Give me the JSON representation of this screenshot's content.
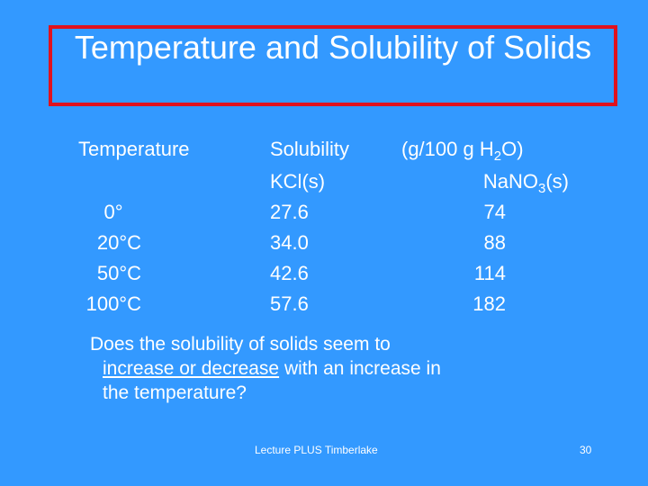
{
  "title": "Temperature and Solubility of Solids",
  "table": {
    "col_temperature": "Temperature",
    "col_solubility": "Solubility",
    "col_units_prefix": "(g/100 g H",
    "col_units_sub": "2",
    "col_units_suffix": "O)",
    "kcl_header": "KCl(s)",
    "nano3_header_prefix": "NaNO",
    "nano3_header_sub": "3",
    "nano3_header_suffix": "(s)",
    "rows": [
      {
        "temperature": "0°",
        "kcl": "27.6",
        "nano3": "74"
      },
      {
        "temperature": "20°C",
        "kcl": "34.0",
        "nano3": "88"
      },
      {
        "temperature": "50°C",
        "kcl": "42.6",
        "nano3": "114"
      },
      {
        "temperature": "100°C",
        "kcl": "57.6",
        "nano3": "182"
      }
    ]
  },
  "question": {
    "line1": "Does the solubility of  solids seem to",
    "line2_underlined": "increase or decrease",
    "line2_rest": "  with an increase in",
    "line3": "the  temperature?"
  },
  "footer": {
    "source": "Lecture PLUS  Timberlake",
    "page_number": "30"
  }
}
